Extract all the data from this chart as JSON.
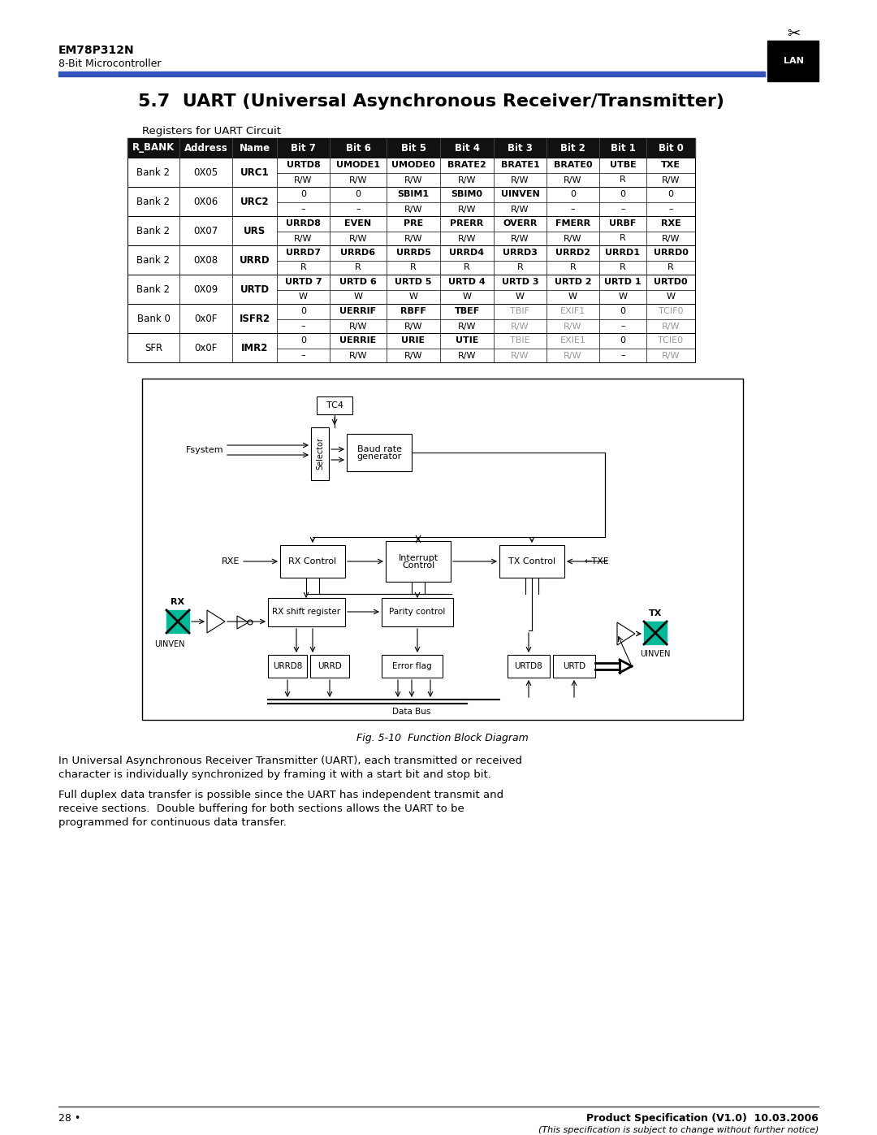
{
  "page_title": "EM78P312N",
  "page_subtitle": "8-Bit Microcontroller",
  "section_title": "5.7  UART (Universal Asynchronous Receiver/Transmitter)",
  "table_caption": "Registers for UART Circuit",
  "header_cols": [
    "R_BANK",
    "Address",
    "Name",
    "Bit 7",
    "Bit 6",
    "Bit 5",
    "Bit 4",
    "Bit 3",
    "Bit 2",
    "Bit 1",
    "Bit 0"
  ],
  "table_rows": [
    {
      "bank": "Bank 2",
      "addr": "0X05",
      "name": "URC1",
      "row1": [
        "URTD8",
        "UMODE1",
        "UMODE0",
        "BRATE2",
        "BRATE1",
        "BRATE0",
        "UTBE",
        "TXE"
      ],
      "row2": [
        "R/W",
        "R/W",
        "R/W",
        "R/W",
        "R/W",
        "R/W",
        "R",
        "R/W"
      ],
      "bold1": [
        true,
        true,
        true,
        true,
        true,
        true,
        true,
        true
      ],
      "gray1": [
        false,
        false,
        false,
        false,
        false,
        false,
        false,
        false
      ]
    },
    {
      "bank": "Bank 2",
      "addr": "0X06",
      "name": "URC2",
      "row1": [
        "0",
        "0",
        "SBIM1",
        "SBIM0",
        "UINVEN",
        "0",
        "0",
        "0"
      ],
      "row2": [
        "–",
        "–",
        "R/W",
        "R/W",
        "R/W",
        "–",
        "–",
        "–"
      ],
      "bold1": [
        false,
        false,
        true,
        true,
        true,
        false,
        false,
        false
      ],
      "gray1": [
        false,
        false,
        false,
        false,
        false,
        false,
        false,
        false
      ]
    },
    {
      "bank": "Bank 2",
      "addr": "0X07",
      "name": "URS",
      "row1": [
        "URRD8",
        "EVEN",
        "PRE",
        "PRERR",
        "OVERR",
        "FMERR",
        "URBF",
        "RXE"
      ],
      "row2": [
        "R/W",
        "R/W",
        "R/W",
        "R/W",
        "R/W",
        "R/W",
        "R",
        "R/W"
      ],
      "bold1": [
        true,
        true,
        true,
        true,
        true,
        true,
        true,
        true
      ],
      "gray1": [
        false,
        false,
        false,
        false,
        false,
        false,
        false,
        false
      ]
    },
    {
      "bank": "Bank 2",
      "addr": "0X08",
      "name": "URRD",
      "row1": [
        "URRD7",
        "URRD6",
        "URRD5",
        "URRD4",
        "URRD3",
        "URRD2",
        "URRD1",
        "URRD0"
      ],
      "row2": [
        "R",
        "R",
        "R",
        "R",
        "R",
        "R",
        "R",
        "R"
      ],
      "bold1": [
        true,
        true,
        true,
        true,
        true,
        true,
        true,
        true
      ],
      "gray1": [
        false,
        false,
        false,
        false,
        false,
        false,
        false,
        false
      ]
    },
    {
      "bank": "Bank 2",
      "addr": "0X09",
      "name": "URTD",
      "row1": [
        "URTD 7",
        "URTD 6",
        "URTD 5",
        "URTD 4",
        "URTD 3",
        "URTD 2",
        "URTD 1",
        "URTD0"
      ],
      "row2": [
        "W",
        "W",
        "W",
        "W",
        "W",
        "W",
        "W",
        "W"
      ],
      "bold1": [
        true,
        true,
        true,
        true,
        true,
        true,
        true,
        true
      ],
      "gray1": [
        false,
        false,
        false,
        false,
        false,
        false,
        false,
        false
      ]
    },
    {
      "bank": "Bank 0",
      "addr": "0x0F",
      "name": "ISFR2",
      "row1": [
        "0",
        "UERRIF",
        "RBFF",
        "TBEF",
        "TBIF",
        "EXIF1",
        "0",
        "TCIF0"
      ],
      "row2": [
        "–",
        "R/W",
        "R/W",
        "R/W",
        "R/W",
        "R/W",
        "–",
        "R/W"
      ],
      "bold1": [
        false,
        true,
        true,
        true,
        false,
        false,
        false,
        false
      ],
      "gray1": [
        false,
        false,
        false,
        false,
        true,
        true,
        false,
        true
      ]
    },
    {
      "bank": "SFR",
      "addr": "0x0F",
      "name": "IMR2",
      "row1": [
        "0",
        "UERRIE",
        "URIE",
        "UTIE",
        "TBIE",
        "EXIE1",
        "0",
        "TCIE0"
      ],
      "row2": [
        "–",
        "R/W",
        "R/W",
        "R/W",
        "R/W",
        "R/W",
        "–",
        "R/W"
      ],
      "bold1": [
        false,
        true,
        true,
        true,
        false,
        false,
        false,
        false
      ],
      "gray1": [
        false,
        false,
        false,
        false,
        true,
        true,
        false,
        true
      ]
    }
  ],
  "fig_caption": "Fig. 5-10  Function Block Diagram",
  "body_text1_lines": [
    "In Universal Asynchronous Receiver Transmitter (UART), each transmitted or received",
    "character is individually synchronized by framing it with a start bit and stop bit."
  ],
  "body_text2_lines": [
    "Full duplex data transfer is possible since the UART has independent transmit and",
    "receive sections.  Double buffering for both sections allows the UART to be",
    "programmed for continuous data transfer."
  ],
  "footer_left": "28 •",
  "footer_right": "Product Specification (V1.0)  10.03.2006",
  "footer_right2": "(This specification is subject to change without further notice)"
}
